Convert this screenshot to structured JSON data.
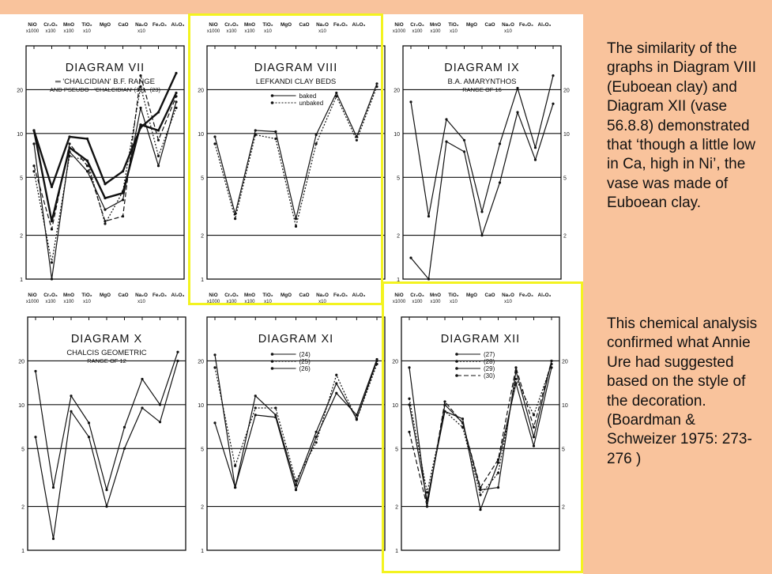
{
  "caption": {
    "paragraph1": "The similarity of the graphs in Diagram VIII (Euboean clay) and Diagram XII (vase 56.8.8) demonstrated that ‘though a little low in Ca, high in Ni’, the vase was made of Euboean clay.",
    "paragraph2": "This chemical analysis confirmed what Annie Ure had suggested based on the style of the decoration. (Boardman & Schweizer 1975: 273-276 )"
  },
  "colors": {
    "slide_background": "#f9c39c",
    "highlight": "#f3f31f",
    "ink": "#111111",
    "panel": "#ffffff"
  },
  "chart_data": [
    {
      "type": "line",
      "title": "DIAGRAM VII",
      "subtitle": [
        "═ 'CHALCIDIAN' B.F. RANGE",
        "AND PSEUDO - 'CHALCIDIAN' (19) - (23)"
      ],
      "categories": [
        "NiO",
        "Cr₂O₃",
        "MnO",
        "TiO₂",
        "MgO",
        "CaO",
        "Na₂O",
        "Fe₂O₃",
        "Al₂O₃"
      ],
      "multipliers": [
        "x1000",
        "x100",
        "x100",
        "x10",
        "",
        "",
        "x10",
        "",
        ""
      ],
      "yscale": "log",
      "ylim": [
        1,
        40
      ],
      "yticks": [
        1,
        2,
        5,
        10,
        20
      ],
      "series": [
        {
          "values": [
            10.5,
            4.3,
            9.5,
            9.2,
            4.5,
            5.5,
            11.0,
            14.0,
            26.0
          ],
          "style": "bold"
        },
        {
          "values": [
            10.5,
            2.5,
            8.0,
            6.5,
            3.6,
            3.9,
            11.5,
            10.5,
            19.0
          ],
          "style": "bold"
        },
        {
          "values": [
            8.5,
            1.0,
            7.5,
            5.5,
            3.0,
            3.5,
            15.0,
            6.0,
            16.5
          ],
          "style": "solid"
        },
        {
          "values": [
            6.0,
            2.2,
            8.5,
            6.0,
            2.5,
            2.7,
            25.0,
            9.0,
            18.0
          ],
          "style": "dashed"
        },
        {
          "values": [
            5.5,
            1.3,
            7.0,
            6.5,
            2.4,
            4.0,
            21.0,
            7.0,
            15.0
          ],
          "style": "dotted"
        }
      ]
    },
    {
      "type": "line",
      "title": "DIAGRAM VIII",
      "subtitle": [
        "LEFKANDI CLAY BEDS"
      ],
      "categories": [
        "NiO",
        "Cr₂O₃",
        "MnO",
        "TiO₂",
        "MgO",
        "CaO",
        "Na₂O",
        "Fe₂O₃",
        "Al₂O₃"
      ],
      "multipliers": [
        "x1000",
        "x100",
        "x100",
        "x10",
        "",
        "",
        "x10",
        "",
        ""
      ],
      "yscale": "log",
      "ylim": [
        1,
        40
      ],
      "yticks": [
        1,
        2,
        5,
        10,
        20
      ],
      "series": [
        {
          "name": "baked",
          "values": [
            9.5,
            2.8,
            10.5,
            10.3,
            2.6,
            9.8,
            19.0,
            9.5,
            22.0
          ],
          "style": "solid"
        },
        {
          "name": "unbaked",
          "values": [
            8.5,
            2.6,
            9.8,
            9.2,
            2.3,
            8.5,
            18.0,
            9.0,
            21.0
          ],
          "style": "dotted"
        }
      ]
    },
    {
      "type": "line",
      "title": "DIAGRAM IX",
      "subtitle": [
        "B.A. AMARYNTHOS",
        "RANGE OF 16"
      ],
      "categories": [
        "NiO",
        "Cr₂O₃",
        "MnO",
        "TiO₂",
        "MgO",
        "CaO",
        "Na₂O",
        "Fe₂O₃",
        "Al₂O₃"
      ],
      "multipliers": [
        "x1000",
        "x100",
        "x100",
        "x10",
        "",
        "",
        "x10",
        "",
        ""
      ],
      "yscale": "log",
      "ylim": [
        1,
        40
      ],
      "yticks": [
        1,
        2,
        5,
        10,
        20
      ],
      "series": [
        {
          "values": [
            16.5,
            2.7,
            12.5,
            9.0,
            2.9,
            8.5,
            20.5,
            8.0,
            25.0
          ],
          "style": "solid"
        },
        {
          "values": [
            1.4,
            1.0,
            8.8,
            7.5,
            2.0,
            4.6,
            14.0,
            6.6,
            16.0
          ],
          "style": "solid"
        }
      ]
    },
    {
      "type": "line",
      "title": "DIAGRAM X",
      "subtitle": [
        "CHALCIS GEOMETRIC",
        "RANGE OF 12"
      ],
      "categories": [
        "NiO",
        "Cr₂O₃",
        "MnO",
        "TiO₂",
        "MgO",
        "CaO",
        "Na₂O",
        "Fe₂O₃",
        "Al₂O₃"
      ],
      "multipliers": [
        "x1000",
        "x100",
        "x100",
        "x10",
        "",
        "",
        "x10",
        "",
        ""
      ],
      "yscale": "log",
      "ylim": [
        1,
        40
      ],
      "yticks": [
        1,
        2,
        5,
        10,
        20
      ],
      "series": [
        {
          "values": [
            17.0,
            2.7,
            11.5,
            7.5,
            2.6,
            7.0,
            15.0,
            10.0,
            23.0
          ],
          "style": "solid"
        },
        {
          "values": [
            6.0,
            1.2,
            9.0,
            6.0,
            2.0,
            5.0,
            9.5,
            7.6,
            20.0
          ],
          "style": "solid"
        }
      ]
    },
    {
      "type": "line",
      "title": "DIAGRAM XI",
      "subtitle": [],
      "categories": [
        "NiO",
        "Cr₂O₃",
        "MnO",
        "TiO₂",
        "MgO",
        "CaO",
        "Na₂O",
        "Fe₂O₃",
        "Al₂O₃"
      ],
      "multipliers": [
        "x1000",
        "x100",
        "x100",
        "x10",
        "",
        "",
        "x10",
        "",
        ""
      ],
      "yscale": "log",
      "ylim": [
        1,
        40
      ],
      "yticks": [
        1,
        2,
        5,
        10,
        20
      ],
      "series": [
        {
          "name": "(24)",
          "values": [
            22.0,
            2.7,
            11.5,
            8.5,
            2.8,
            6.5,
            14.0,
            8.0,
            20.0
          ],
          "style": "solid"
        },
        {
          "name": "(25)",
          "values": [
            18.0,
            3.8,
            9.5,
            9.5,
            3.0,
            5.5,
            16.0,
            7.9,
            19.0
          ],
          "style": "dotted"
        },
        {
          "name": "(26)",
          "values": [
            7.5,
            2.7,
            8.5,
            8.2,
            2.6,
            6.0,
            12.0,
            8.5,
            20.5
          ],
          "style": "solid"
        }
      ]
    },
    {
      "type": "line",
      "title": "DIAGRAM XII",
      "subtitle": [],
      "categories": [
        "NiO",
        "Cr₂O₃",
        "MnO",
        "TiO₂",
        "MgO",
        "CaO",
        "Na₂O",
        "Fe₂O₃",
        "Al₂O₃"
      ],
      "multipliers": [
        "x1000",
        "x100",
        "x100",
        "x10",
        "",
        "",
        "x10",
        "",
        ""
      ],
      "yscale": "log",
      "ylim": [
        1,
        40
      ],
      "yticks": [
        1,
        2,
        5,
        10,
        20
      ],
      "series": [
        {
          "name": "(27)",
          "values": [
            18.0,
            2.0,
            10.0,
            7.5,
            2.6,
            2.7,
            17.0,
            6.0,
            20.0
          ],
          "style": "solid"
        },
        {
          "name": "(28)",
          "values": [
            11.0,
            2.5,
            9.0,
            7.0,
            2.4,
            3.4,
            15.0,
            8.5,
            19.0
          ],
          "style": "dotted"
        },
        {
          "name": "(29)",
          "values": [
            10.0,
            2.2,
            9.0,
            8.0,
            1.9,
            4.0,
            14.0,
            5.2,
            18.0
          ],
          "style": "solid"
        },
        {
          "name": "(30)",
          "values": [
            6.5,
            2.0,
            10.5,
            7.5,
            2.7,
            4.2,
            18.0,
            7.0,
            20.0
          ],
          "style": "dashed"
        }
      ]
    }
  ]
}
